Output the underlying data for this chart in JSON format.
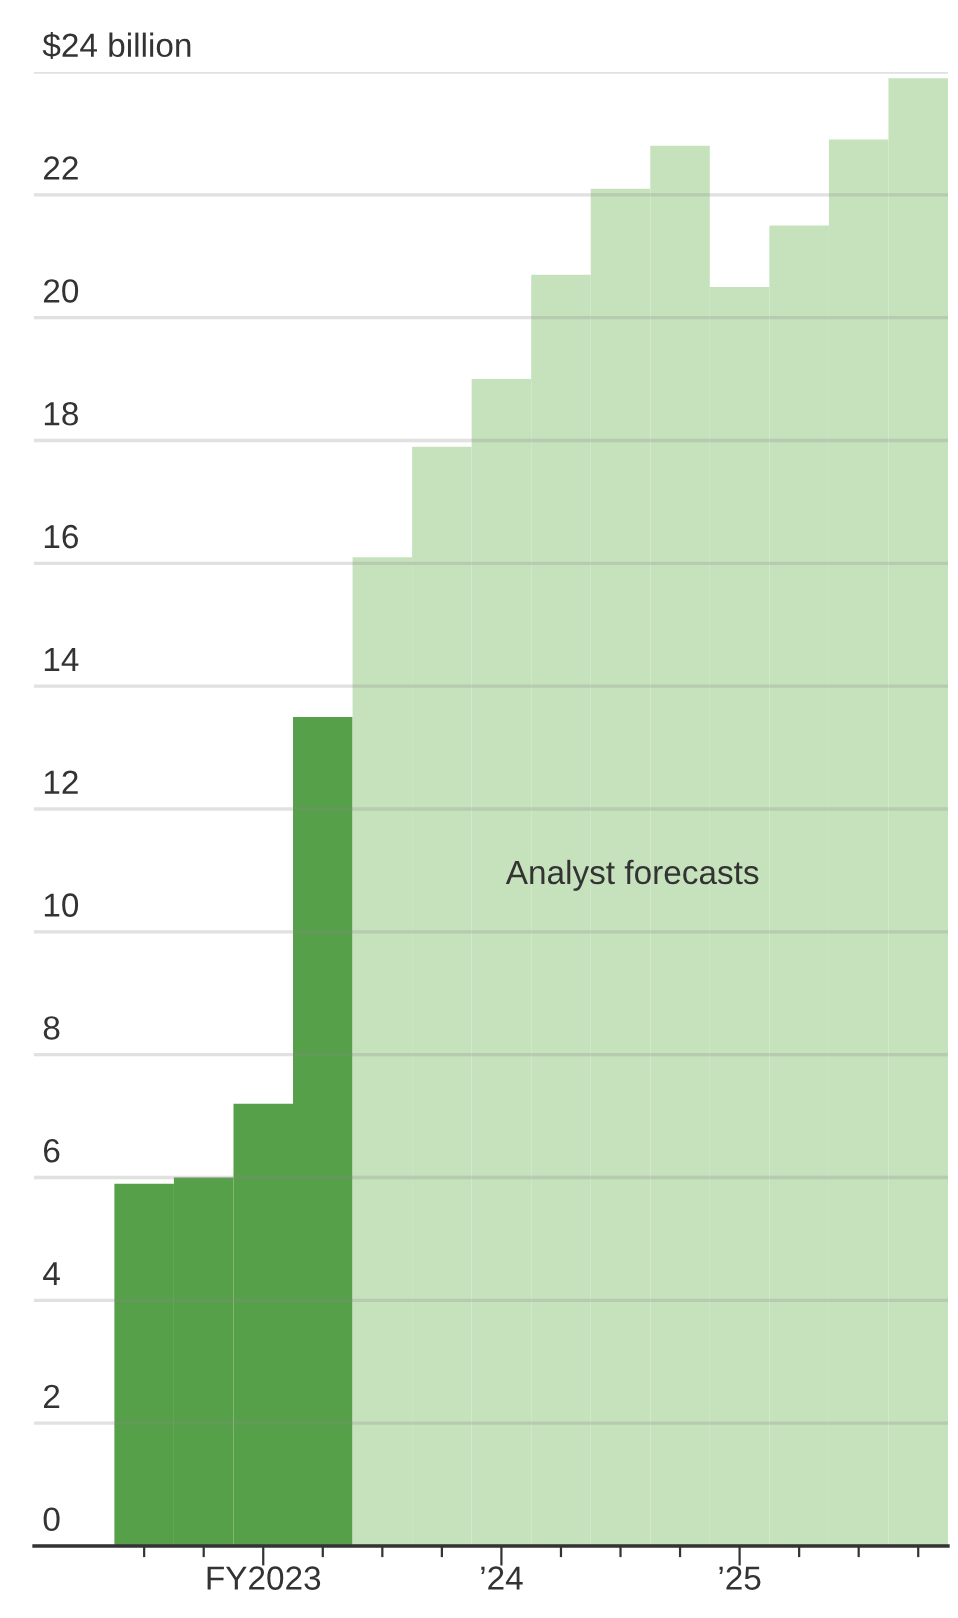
{
  "chart_data": {
    "type": "bar",
    "categories": [
      null,
      null,
      "FY2023",
      null,
      null,
      null,
      "’24",
      null,
      null,
      null,
      "’25",
      null,
      null,
      null
    ],
    "values": [
      5.9,
      6.0,
      7.2,
      13.5,
      16.1,
      17.9,
      19.0,
      20.7,
      22.1,
      22.8,
      20.5,
      21.5,
      22.9,
      23.9
    ],
    "colors": [
      "#57a04a",
      "#57a04a",
      "#57a04a",
      "#57a04a",
      "#c6e2bc",
      "#c6e2bc",
      "#c6e2bc",
      "#c6e2bc",
      "#c6e2bc",
      "#c6e2bc",
      "#c6e2bc",
      "#c6e2bc",
      "#c6e2bc",
      "#c6e2bc"
    ],
    "ylim": [
      0,
      24
    ],
    "yticks": [
      0,
      2,
      4,
      6,
      8,
      10,
      12,
      14,
      16,
      18,
      20,
      22,
      {
        "value": 24,
        "label": "$24 billion"
      }
    ],
    "grid": "y",
    "annotations": [
      "Analyst forecasts"
    ]
  }
}
